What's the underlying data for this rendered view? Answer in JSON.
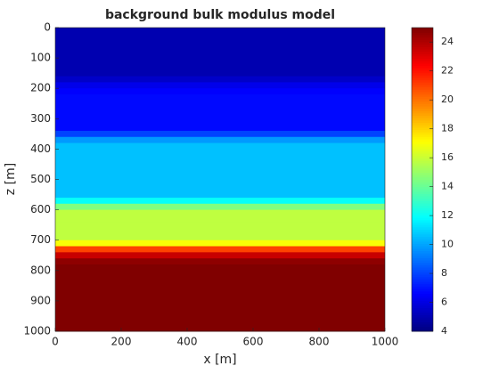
{
  "chart_data": {
    "type": "heatmap",
    "title": "background bulk modulus model",
    "x_label": "x [m]",
    "y_label": "z [m]",
    "xlim": [
      0,
      1000
    ],
    "xticks": [
      0,
      200,
      400,
      600,
      800,
      1000
    ],
    "ylim": [
      1000,
      0
    ],
    "yticks": [
      0,
      100,
      200,
      300,
      400,
      500,
      600,
      700,
      800,
      900,
      1000
    ],
    "colormap": "jet",
    "clim": [
      4,
      25
    ],
    "cticks": [
      4,
      6,
      8,
      10,
      12,
      14,
      16,
      18,
      20,
      22,
      24
    ],
    "z": [
      10,
      30,
      50,
      70,
      90,
      110,
      130,
      150,
      170,
      190,
      210,
      230,
      250,
      270,
      290,
      310,
      330,
      350,
      370,
      390,
      410,
      430,
      450,
      470,
      490,
      510,
      530,
      550,
      570,
      590,
      610,
      630,
      650,
      670,
      690,
      710,
      730,
      750,
      770,
      790,
      810,
      830,
      850,
      870,
      890,
      910,
      930,
      950,
      970,
      990
    ],
    "values": [
      5.0,
      5.0,
      5.0,
      5.0,
      5.0,
      5.0,
      5.0,
      5.0,
      5.5,
      6.2,
      6.6,
      6.8,
      6.8,
      6.8,
      6.8,
      6.8,
      6.8,
      8.0,
      9.8,
      10.6,
      10.6,
      10.6,
      10.6,
      10.6,
      10.6,
      10.6,
      10.6,
      10.6,
      12.0,
      14.5,
      15.8,
      15.8,
      15.8,
      15.8,
      15.8,
      17.0,
      21,
      23.5,
      24.7,
      25,
      25,
      25,
      25,
      25,
      25,
      25,
      25,
      25,
      25,
      25
    ]
  }
}
